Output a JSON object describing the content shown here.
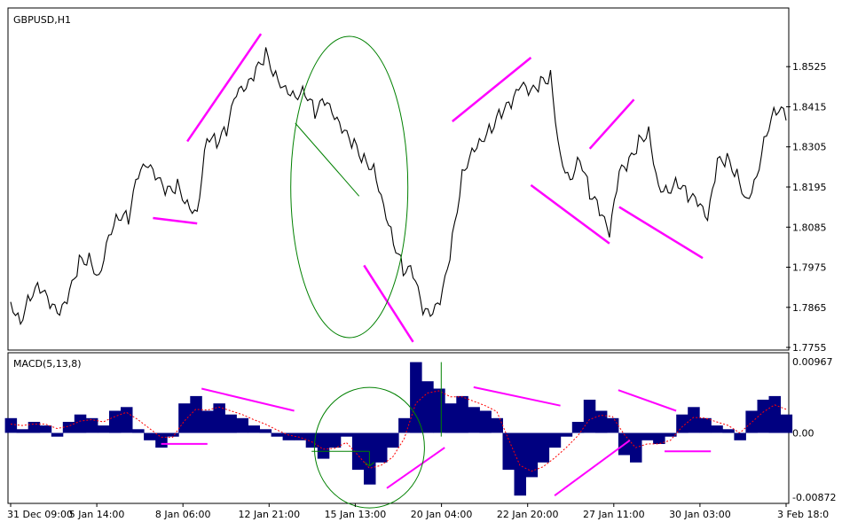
{
  "window": {
    "symbol_title": "GBPUSD,H1",
    "indicator_title": "MACD(5,13,8)"
  },
  "colors": {
    "price_line": "#000000",
    "histogram": "#000080",
    "signal_line": "#ff0000",
    "trend_lines": "#ff00ff",
    "annotations": "#008000",
    "grid_frame": "#000000"
  },
  "chart_data": [
    {
      "type": "line",
      "title": "GBPUSD,H1",
      "series": [
        {
          "name": "",
          "values": [
            1.788,
            1.783,
            1.79,
            1.792,
            1.787,
            1.784,
            1.79,
            1.799,
            1.8,
            1.795,
            1.807,
            1.812,
            1.811,
            1.823,
            1.825,
            1.821,
            1.818,
            1.82,
            1.815,
            1.813,
            1.834,
            1.832,
            1.835,
            1.845,
            1.846,
            1.851,
            1.856,
            1.85,
            1.847,
            1.845,
            1.846,
            1.84,
            1.843,
            1.838,
            1.834,
            1.831,
            1.827,
            1.825,
            1.815,
            1.805,
            1.797,
            1.796,
            1.785,
            1.784,
            1.79,
            1.805,
            1.823,
            1.83,
            1.833,
            1.836,
            1.84,
            1.842,
            1.847,
            1.845,
            1.848,
            1.85,
            1.828,
            1.822,
            1.828,
            1.818,
            1.813,
            1.806,
            1.823,
            1.826,
            1.832,
            1.835,
            1.82,
            1.819,
            1.821,
            1.817,
            1.815,
            1.81,
            1.826,
            1.827,
            1.823,
            1.816,
            1.823,
            1.835,
            1.841,
            1.839
          ]
        }
      ],
      "y_ticks": [
        "1.8525",
        "1.8415",
        "1.8305",
        "1.8195",
        "1.8085",
        "1.7975",
        "1.7865",
        "1.7755"
      ],
      "ylim": [
        1.7755,
        1.8635
      ]
    },
    {
      "type": "bar",
      "title": "MACD(5,13,8)",
      "series": [
        {
          "name": "",
          "values": [
            0.002,
            0.0005,
            0.0015,
            0.001,
            -0.0005,
            0.0015,
            0.0025,
            0.002,
            0.001,
            0.003,
            0.0035,
            0.0005,
            -0.001,
            -0.002,
            -0.0005,
            0.004,
            0.005,
            0.003,
            0.004,
            0.0025,
            0.002,
            0.001,
            0.0005,
            -0.0005,
            -0.001,
            -0.001,
            -0.002,
            -0.0035,
            -0.002,
            -0.0005,
            -0.005,
            -0.007,
            -0.004,
            -0.002,
            0.002,
            0.0096,
            0.007,
            0.006,
            0.004,
            0.005,
            0.0035,
            0.003,
            0.002,
            -0.005,
            -0.0085,
            -0.006,
            -0.004,
            -0.002,
            -0.0005,
            0.0015,
            0.0045,
            0.003,
            0.002,
            -0.003,
            -0.004,
            -0.001,
            -0.0015,
            -0.0005,
            0.0025,
            0.0035,
            0.002,
            0.001,
            0.0005,
            -0.001,
            0.003,
            0.0045,
            0.005,
            0.0025
          ]
        },
        {
          "name": "",
          "values": [
            0.0012,
            0.001,
            0.0012,
            0.0012,
            0.0006,
            0.0009,
            0.0016,
            0.0018,
            0.0015,
            0.0022,
            0.0028,
            0.0018,
            0.0006,
            -0.0006,
            -0.0006,
            0.0016,
            0.0032,
            0.0031,
            0.0035,
            0.003,
            0.0025,
            0.0018,
            0.0012,
            0.0004,
            -0.0003,
            -0.0006,
            -0.0012,
            -0.0022,
            -0.0021,
            -0.0013,
            -0.003,
            -0.0048,
            -0.0044,
            -0.0033,
            -0.0008,
            0.004,
            0.0054,
            0.0057,
            0.0049,
            0.0049,
            0.0043,
            0.0037,
            0.0029,
            -0.0008,
            -0.0044,
            -0.0052,
            -0.0046,
            -0.0034,
            -0.002,
            -0.0004,
            0.0018,
            0.0024,
            0.0022,
            -0.0002,
            -0.002,
            -0.0015,
            -0.0015,
            -0.001,
            0.0008,
            0.0021,
            0.002,
            0.0015,
            0.001,
            0.0,
            0.0014,
            0.0028,
            0.0038,
            0.0032
          ]
        }
      ],
      "y_ticks": [
        "0.00967",
        "0.00",
        "-0.00872"
      ],
      "ylim": [
        -0.00872,
        0.00967
      ]
    }
  ],
  "x_ticks": [
    "31 Dec 09:00",
    "5 Jan 14:00",
    "8 Jan 06:00",
    "12 Jan 21:00",
    "15 Jan 13:00",
    "20 Jan 04:00",
    "22 Jan 20:00",
    "27 Jan 11:00",
    "30 Jan 03:00",
    "3 Feb 18:0"
  ]
}
